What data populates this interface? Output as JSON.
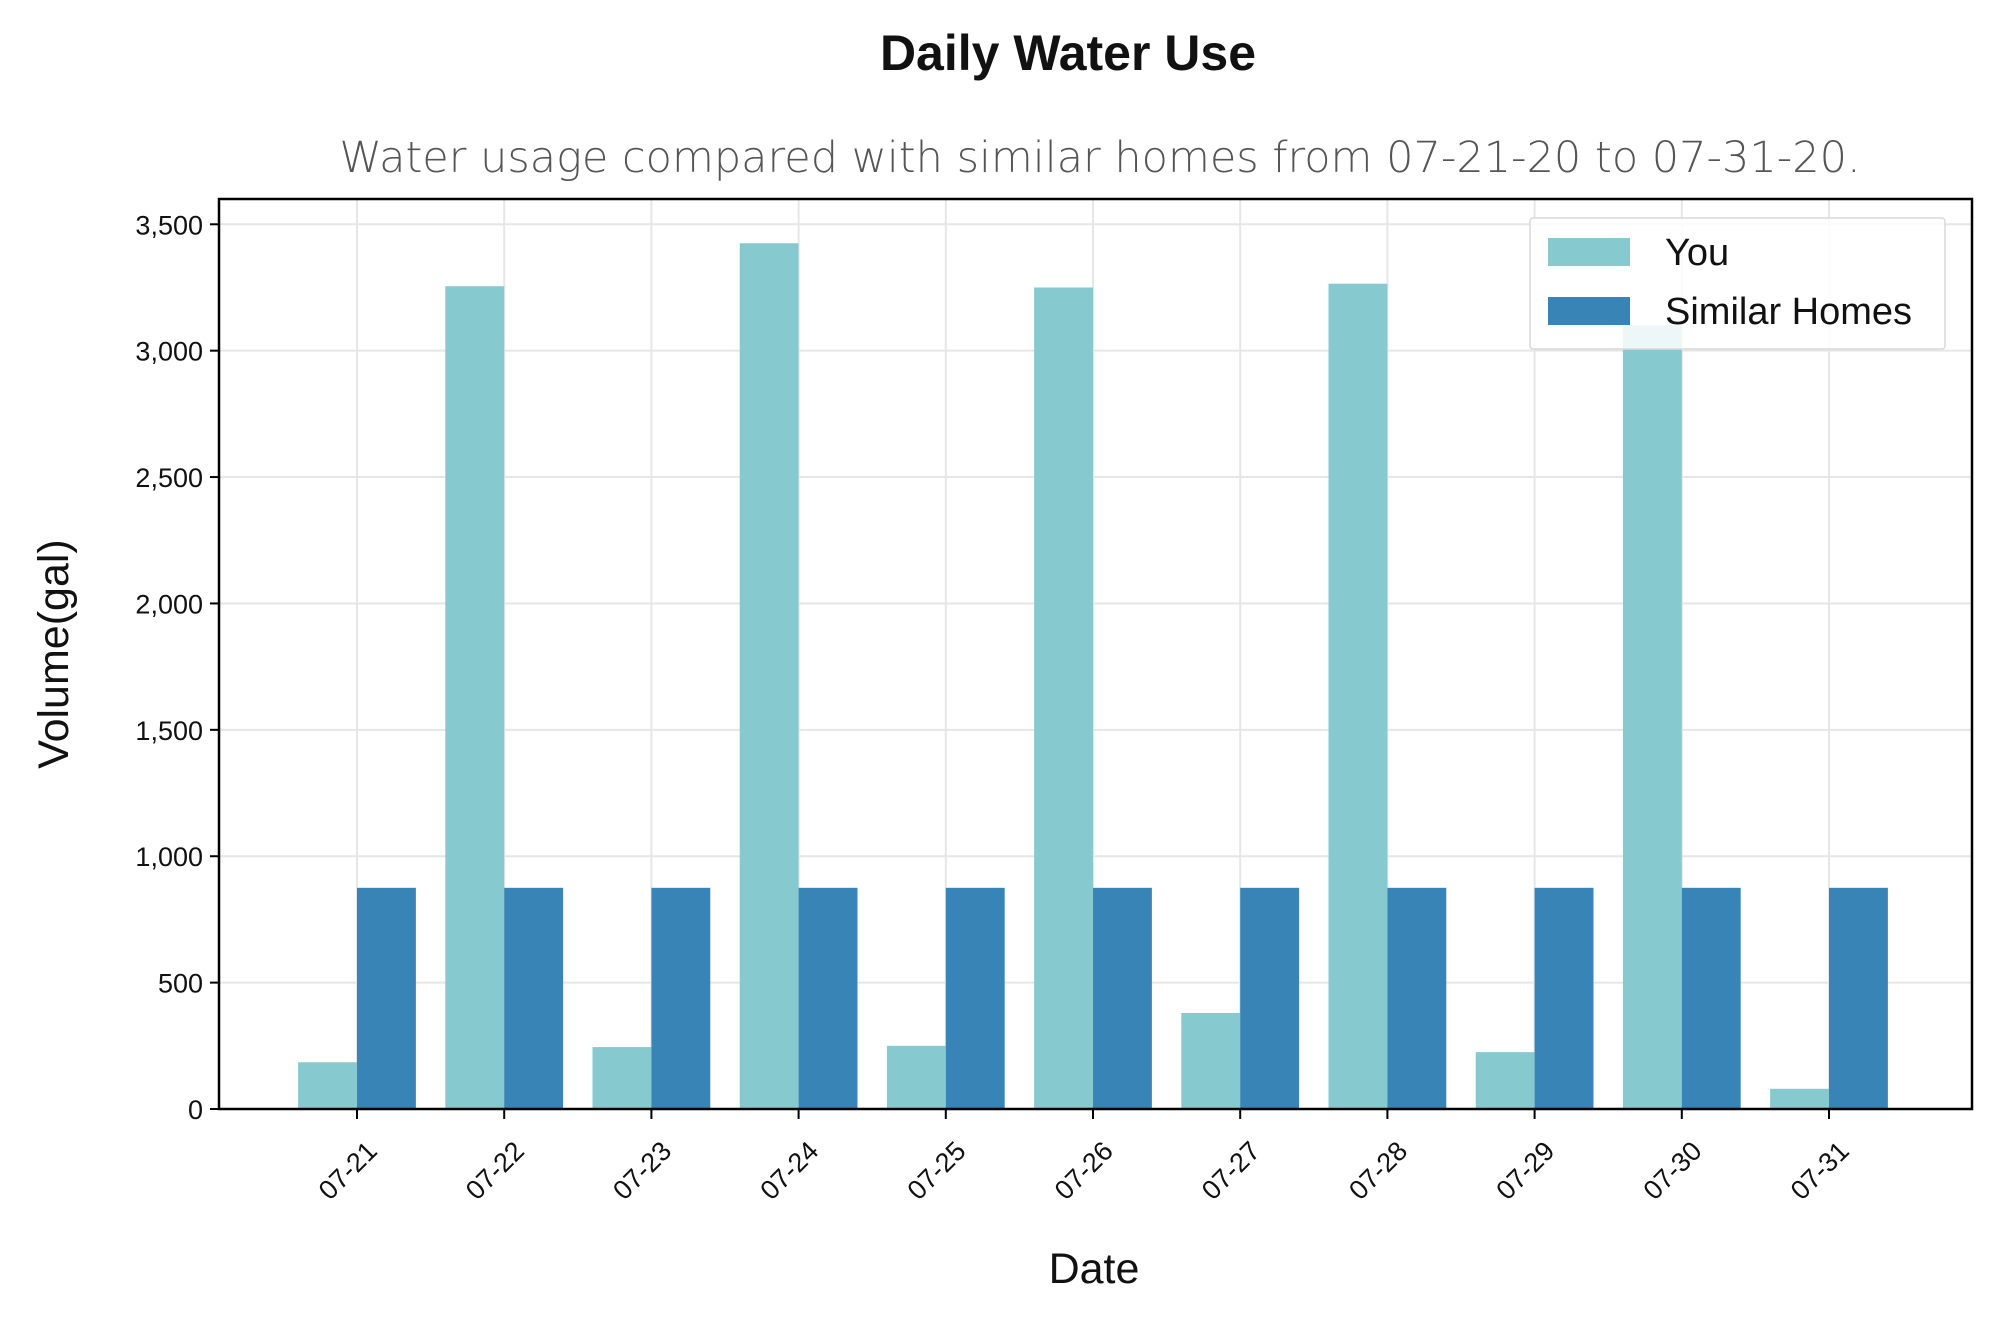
{
  "chart_data": {
    "type": "bar",
    "title": "Daily Water Use",
    "subtitle": "Water usage compared with similar homes from 07-21-20 to 07-31-20.",
    "xlabel": "Date",
    "ylabel": "Volume(gal)",
    "categories": [
      "07-21",
      "07-22",
      "07-23",
      "07-24",
      "07-25",
      "07-26",
      "07-27",
      "07-28",
      "07-29",
      "07-30",
      "07-31"
    ],
    "series": [
      {
        "name": "You",
        "color": "#86cad0",
        "values": [
          185,
          3255,
          245,
          3425,
          250,
          3250,
          380,
          3265,
          225,
          3100,
          80
        ]
      },
      {
        "name": "Similar Homes",
        "color": "#3984b6",
        "values": [
          875,
          875,
          875,
          875,
          875,
          875,
          875,
          875,
          875,
          875,
          875
        ]
      }
    ],
    "ylim": [
      0,
      3600
    ],
    "yticks": [
      0,
      500,
      1000,
      1500,
      2000,
      2500,
      3000,
      3500
    ],
    "ytick_labels": [
      "0",
      "500",
      "1,000",
      "1,500",
      "2,000",
      "2,500",
      "3,000",
      "3,500"
    ],
    "grid": true,
    "legend_position": "top-right"
  }
}
